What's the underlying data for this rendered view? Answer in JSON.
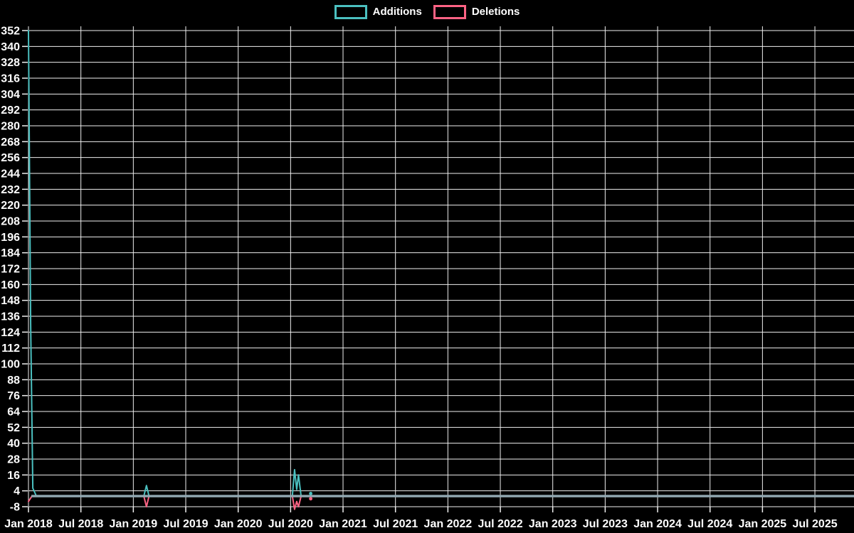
{
  "page": {
    "background_color": "#000000",
    "text_color": "#ffffff"
  },
  "legend": {
    "position": "top-center",
    "items": [
      {
        "label": "Additions",
        "color": "#4bc0c0"
      },
      {
        "label": "Deletions",
        "color": "#ff6384"
      }
    ]
  },
  "chart_data": {
    "type": "line",
    "title": "",
    "xlabel": "",
    "ylabel": "",
    "grid": true,
    "grid_color": "#efefef",
    "tick_label_color": "#ffffff",
    "overlap_baseline_color": "#92a9b3",
    "legend_position": "top",
    "x_axis": {
      "tick_labels": [
        "Jan 2018",
        "Jul 2018",
        "Jan 2019",
        "Jul 2019",
        "Jan 2020",
        "Jul 2020",
        "Jan 2021",
        "Jul 2021",
        "Jan 2022",
        "Jul 2022",
        "Jan 2023",
        "Jul 2023",
        "Jan 2024",
        "Jul 2024",
        "Jan 2025",
        "Jul 2025"
      ],
      "tick_interval_months": 6,
      "range_months": [
        0,
        94.5
      ]
    },
    "y_axis": {
      "min": -8,
      "max": 352,
      "tick_step": 12
    },
    "series": [
      {
        "name": "Additions",
        "color": "#4bc0c0",
        "points": [
          {
            "month": 0.0,
            "value": 352
          },
          {
            "month": 0.25,
            "value": 130
          },
          {
            "month": 0.5,
            "value": 6
          },
          {
            "month": 0.9,
            "value": 0
          },
          {
            "month": 13.2,
            "value": 0
          },
          {
            "month": 13.5,
            "value": 8
          },
          {
            "month": 13.8,
            "value": 0
          },
          {
            "month": 30.2,
            "value": 0
          },
          {
            "month": 30.45,
            "value": 20
          },
          {
            "month": 30.7,
            "value": 5
          },
          {
            "month": 30.9,
            "value": 16
          },
          {
            "month": 31.2,
            "value": 0
          },
          {
            "month": 94.5,
            "value": 0
          }
        ],
        "isolated_points": [
          {
            "month": 32.3,
            "value": 2
          }
        ]
      },
      {
        "name": "Deletions",
        "color": "#ff6384",
        "points": [
          {
            "month": 0.0,
            "value": -4
          },
          {
            "month": 0.4,
            "value": 0
          },
          {
            "month": 13.2,
            "value": 0
          },
          {
            "month": 13.5,
            "value": -8
          },
          {
            "month": 13.8,
            "value": 0
          },
          {
            "month": 30.2,
            "value": 0
          },
          {
            "month": 30.45,
            "value": -10
          },
          {
            "month": 30.7,
            "value": -4
          },
          {
            "month": 30.9,
            "value": -8
          },
          {
            "month": 31.2,
            "value": 0
          },
          {
            "month": 94.5,
            "value": 0
          }
        ],
        "isolated_points": [
          {
            "month": 32.3,
            "value": -2
          }
        ]
      }
    ]
  }
}
